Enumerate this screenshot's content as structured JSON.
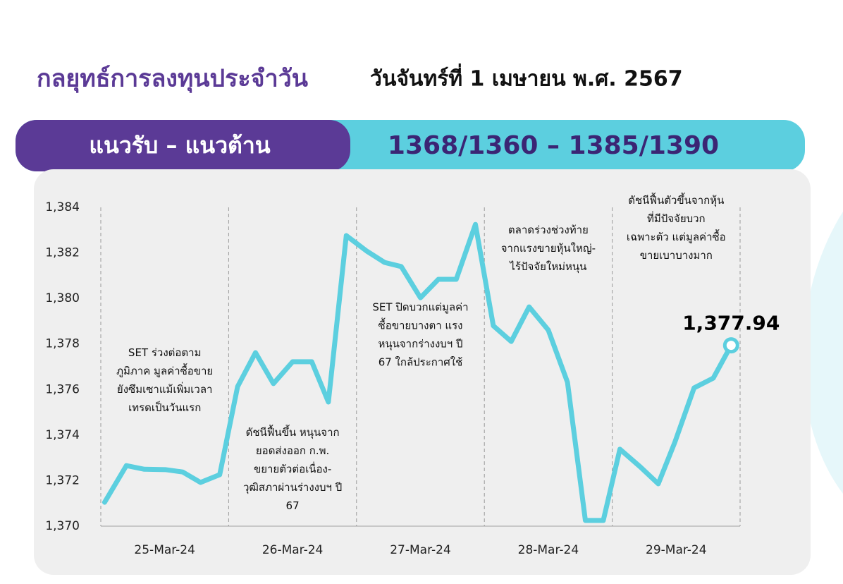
{
  "header": {
    "title": "กลยุทธ์การลงทุนประจำวัน",
    "date": "วันจันทร์ที่ 1 เมษายน พ.ศ. 2567"
  },
  "banner": {
    "label": "แนวรับ – แนวต้าน",
    "levels": "1368/1360 – 1385/1390"
  },
  "chart_data": {
    "type": "line",
    "x": [
      0.03,
      0.2,
      0.34,
      0.51,
      0.64,
      0.78,
      0.93,
      1.07,
      1.21,
      1.35,
      1.5,
      1.65,
      1.78,
      1.92,
      2.08,
      2.22,
      2.35,
      2.5,
      2.64,
      2.78,
      2.93,
      3.07,
      3.21,
      3.35,
      3.5,
      3.65,
      3.79,
      3.93,
      4.06,
      4.22,
      4.36,
      4.49,
      4.64,
      4.79,
      4.93
    ],
    "series": [
      {
        "color": "#5ccfdf",
        "values": [
          1371.05,
          1372.66,
          1372.5,
          1372.48,
          1372.38,
          1371.92,
          1372.26,
          1376.13,
          1377.62,
          1376.26,
          1377.22,
          1377.22,
          1375.45,
          1382.76,
          1382.08,
          1381.58,
          1381.4,
          1380.03,
          1380.84,
          1380.84,
          1383.25,
          1378.8,
          1378.11,
          1379.63,
          1378.61,
          1376.32,
          1370.25,
          1370.25,
          1373.38,
          1372.6,
          1371.86,
          1373.69,
          1376.07,
          1376.5,
          1377.94
        ],
        "value_labels": [
          null,
          null,
          null,
          null,
          null,
          null,
          null,
          null,
          null,
          null,
          null,
          null,
          null,
          null,
          null,
          null,
          null,
          null,
          null,
          null,
          null,
          null,
          null,
          null,
          null,
          null,
          null,
          null,
          null,
          null,
          null,
          null,
          null,
          null,
          "1,377.94"
        ]
      }
    ],
    "xlim": [
      0,
      5
    ],
    "xticks": [
      {
        "value": 0.5,
        "label": "25-Mar-24"
      },
      {
        "value": 1.5,
        "label": "26-Mar-24"
      },
      {
        "value": 2.5,
        "label": "27-Mar-24"
      },
      {
        "value": 3.5,
        "label": "28-Mar-24"
      },
      {
        "value": 4.5,
        "label": "29-Mar-24"
      }
    ],
    "ylim": [
      1370,
      1384
    ],
    "yticks": [
      {
        "value": 1370,
        "label": "1,370"
      },
      {
        "value": 1372,
        "label": "1,372"
      },
      {
        "value": 1374,
        "label": "1,374"
      },
      {
        "value": 1376,
        "label": "1,376"
      },
      {
        "value": 1378,
        "label": "1,378"
      },
      {
        "value": 1380,
        "label": "1,380"
      },
      {
        "value": 1382,
        "label": "1,382"
      },
      {
        "value": 1384,
        "label": "1,384"
      }
    ],
    "annotations": [
      {
        "x": 0.5,
        "y": 1377.6,
        "lines": [
          "SET ร่วงต่อตาม",
          "ภูมิภาค มูลค่าซื้อขาย",
          "ยังซึมเซาแม้เพิ่มเวลา",
          "เทรดเป็นวันแรก"
        ]
      },
      {
        "x": 1.5,
        "y": 1374.1,
        "lines": [
          "ดัชนีฟื้นขึ้น หนุนจาก",
          "ยอดส่งออก ก.พ.",
          "ขยายตัวต่อเนื่อง-",
          "วุฒิสภาผ่านร่างงบฯ ปี",
          "67"
        ]
      },
      {
        "x": 2.5,
        "y": 1379.6,
        "lines": [
          "SET ปิดบวกแต่มูลค่า",
          "ซื้อขายบางตา แรง",
          "หนุนจากร่างงบฯ ปี",
          "67 ใกล้ประกาศใช้"
        ]
      },
      {
        "x": 3.5,
        "y": 1383.0,
        "lines": [
          "ตลาดร่วงช่วงท้าย",
          "จากแรงขายหุ้นใหญ่-",
          "ไร้ปัจจัยใหม่หนุน"
        ]
      },
      {
        "x": 4.5,
        "y": 1384.3,
        "lines": [
          "ดัชนีฟื้นตัวขึ้นจากหุ้น",
          "ที่มีปัจจัยบวก",
          "เฉพาะตัว แต่มูลค่าซื้อ",
          "ขายเบาบางมาก"
        ]
      }
    ]
  }
}
